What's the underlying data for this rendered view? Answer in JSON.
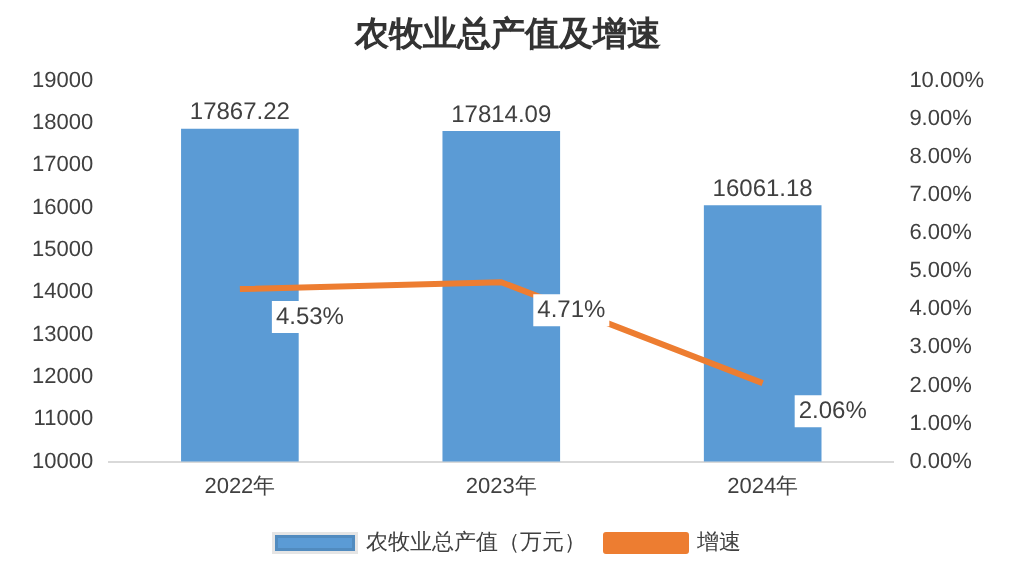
{
  "chart_data": {
    "type": "bar",
    "title": "农牧业总产值及增速",
    "categories": [
      "2022年",
      "2023年",
      "2024年"
    ],
    "series": [
      {
        "name": "农牧业总产值（万元）",
        "color": "#5b9bd5",
        "values": [
          17867.22,
          17814.09,
          16061.18
        ],
        "value_labels": [
          "17867.22",
          "17814.09",
          "16061.18"
        ]
      },
      {
        "name": "增速",
        "type": "line",
        "axis": "y2",
        "color": "#ed7d31",
        "values": [
          4.53,
          4.71,
          2.06
        ],
        "value_labels": [
          "4.53%",
          "4.71%",
          "2.06%"
        ]
      }
    ],
    "ylim": [
      10000,
      19000
    ],
    "yticks": [
      10000,
      11000,
      12000,
      13000,
      14000,
      15000,
      16000,
      17000,
      18000,
      19000
    ],
    "y2lim": [
      0,
      10
    ],
    "y2ticks": [
      {
        "value": 0,
        "label": "0.00%"
      },
      {
        "value": 1,
        "label": "1.00%"
      },
      {
        "value": 2,
        "label": "2.00%"
      },
      {
        "value": 3,
        "label": "3.00%"
      },
      {
        "value": 4,
        "label": "4.00%"
      },
      {
        "value": 5,
        "label": "5.00%"
      },
      {
        "value": 6,
        "label": "6.00%"
      },
      {
        "value": 7,
        "label": "7.00%"
      },
      {
        "value": 8,
        "label": "8.00%"
      },
      {
        "value": 9,
        "label": "9.00%"
      },
      {
        "value": 10,
        "label": "10.00%"
      }
    ],
    "grid": false,
    "legend": "bottom",
    "marker": "none",
    "line_style": "solid"
  }
}
